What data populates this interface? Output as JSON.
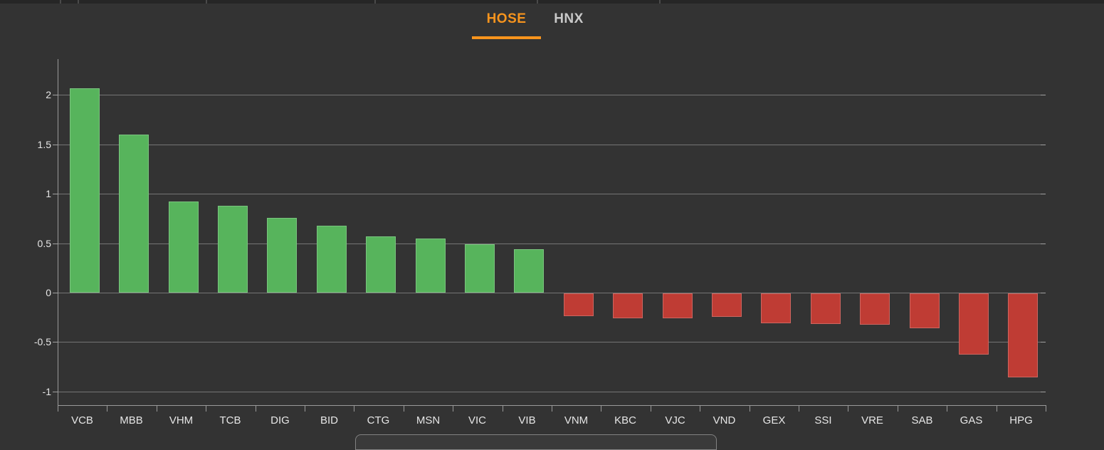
{
  "window": {
    "background": "#333333"
  },
  "tabs": {
    "items": [
      {
        "label": "HOSE",
        "active": true
      },
      {
        "label": "HNX",
        "active": false
      }
    ],
    "active_color": "#f7941d",
    "inactive_color": "#c9c9c9"
  },
  "chart_data": {
    "type": "bar",
    "title": "",
    "xlabel": "",
    "ylabel": "",
    "legend": "none",
    "grid": true,
    "categories": [
      "VCB",
      "MBB",
      "VHM",
      "TCB",
      "DIG",
      "BID",
      "CTG",
      "MSN",
      "VIC",
      "VIB",
      "VNM",
      "KBC",
      "VJC",
      "VND",
      "GEX",
      "SSI",
      "VRE",
      "SAB",
      "GAS",
      "HPG"
    ],
    "values": [
      2.07,
      1.6,
      0.92,
      0.88,
      0.76,
      0.68,
      0.57,
      0.55,
      0.49,
      0.44,
      -0.23,
      -0.25,
      -0.25,
      -0.24,
      -0.3,
      -0.31,
      -0.32,
      -0.35,
      -0.62,
      -0.85
    ],
    "positive_color": "#57b45c",
    "negative_color": "#bf3c34",
    "ytick_labels": [
      "2",
      "1.5",
      "1",
      "0.5",
      "0",
      "-0.5",
      "-1"
    ],
    "ytick_values": [
      2,
      1.5,
      1,
      0.5,
      0,
      -0.5,
      -1
    ],
    "ylim": [
      -1.15,
      2.36
    ]
  }
}
